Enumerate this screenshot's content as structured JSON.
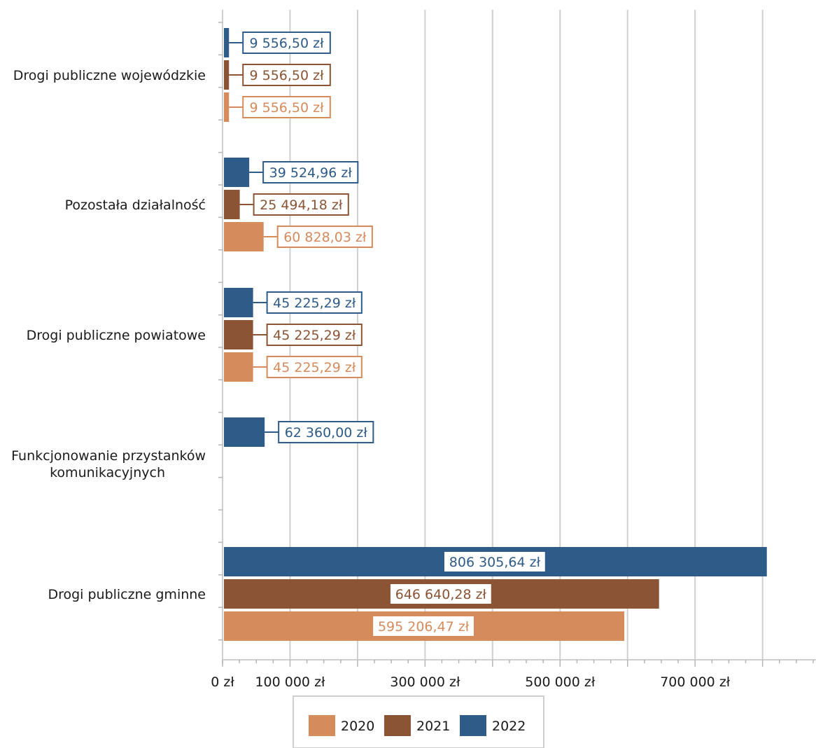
{
  "chart_data": {
    "type": "bar",
    "orientation": "horizontal",
    "categories": [
      "Drogi publiczne wojewódzkie",
      "Pozostała działalność",
      "Drogi publiczne powiatowe",
      "Funkcjonowanie przystanków komunikacyjnych",
      "Drogi publiczne gminne"
    ],
    "series": [
      {
        "name": "2022",
        "color": "#2e5b88",
        "values": [
          9556.5,
          39524.96,
          45225.29,
          62360.0,
          806305.64
        ],
        "labels": [
          "9 556,50 zł",
          "39 524,96 zł",
          "45 225,29 zł",
          "62 360,00 zł",
          "806 305,64 zł"
        ]
      },
      {
        "name": "2021",
        "color": "#8b5535",
        "values": [
          9556.5,
          25494.18,
          45225.29,
          null,
          646640.28
        ],
        "labels": [
          "9 556,50 zł",
          "25 494,18 zł",
          "45 225,29 zł",
          null,
          "646 640,28 zł"
        ]
      },
      {
        "name": "2020",
        "color": "#d58b5c",
        "values": [
          9556.5,
          60828.03,
          45225.29,
          null,
          595206.47
        ],
        "labels": [
          "9 556,50 zł",
          "60 828,03 zł",
          "45 225,29 zł",
          null,
          "595 206,47 zł"
        ]
      }
    ],
    "xlim": [
      0,
      875000
    ],
    "tick_values": [
      0,
      100000,
      300000,
      500000,
      700000
    ],
    "tick_labels": [
      "0 zł",
      "100 000 zł",
      "300 000 zł",
      "500 000 zł",
      "700 000 zł"
    ],
    "gridline_values": [
      100000,
      200000,
      300000,
      400000,
      500000,
      600000,
      700000,
      800000
    ],
    "grid": true,
    "legend": {
      "position": "bottom",
      "items": [
        {
          "label": "2020",
          "color": "#d58b5c"
        },
        {
          "label": "2021",
          "color": "#8b5535"
        },
        {
          "label": "2022",
          "color": "#2e5b88"
        }
      ]
    }
  }
}
